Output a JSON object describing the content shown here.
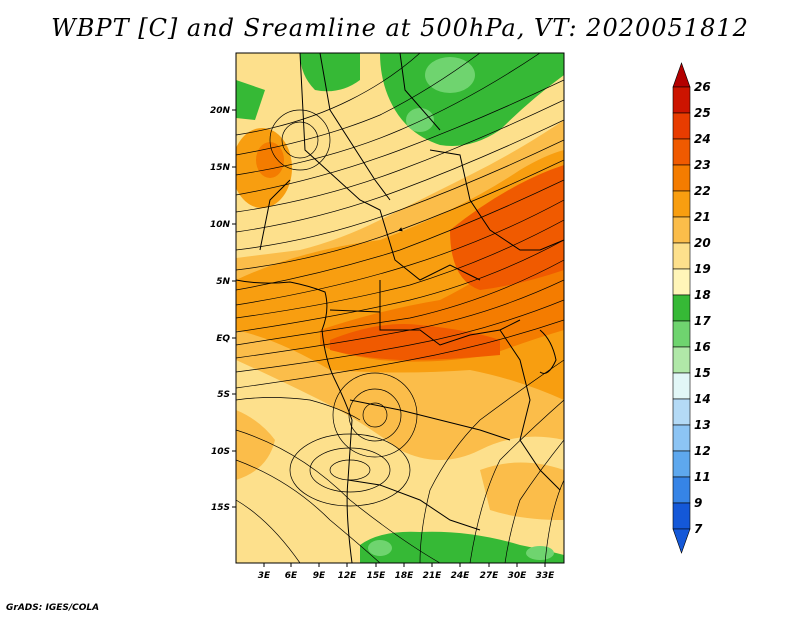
{
  "title": "WBPT [C] and Sreamline at 500hPa, VT: 2020051812",
  "credit": "GrADS: IGES/COLA",
  "map": {
    "lat_labels": [
      "20N",
      "15N",
      "10N",
      "5N",
      "EQ",
      "5S",
      "10S",
      "15S"
    ],
    "lon_labels": [
      "3E",
      "6E",
      "9E",
      "12E",
      "15E",
      "18E",
      "21E",
      "24E",
      "27E",
      "30E",
      "33E"
    ]
  },
  "legend": {
    "levels": [
      {
        "label": "26",
        "color": "#b30000"
      },
      {
        "label": "25",
        "color": "#cc1400"
      },
      {
        "label": "24",
        "color": "#e83c00"
      },
      {
        "label": "23",
        "color": "#f05a00"
      },
      {
        "label": "22",
        "color": "#f47c00"
      },
      {
        "label": "21",
        "color": "#f89e10"
      },
      {
        "label": "20",
        "color": "#fbbd4a"
      },
      {
        "label": "19",
        "color": "#fde08c"
      },
      {
        "label": "18",
        "color": "#fff5b8"
      },
      {
        "label": "17",
        "color": "#36b936"
      },
      {
        "label": "16",
        "color": "#6fd46f"
      },
      {
        "label": "15",
        "color": "#b0e8a8"
      },
      {
        "label": "14",
        "color": "#e2f7f7"
      },
      {
        "label": "13",
        "color": "#b4daf6"
      },
      {
        "label": "12",
        "color": "#8cc4f4"
      },
      {
        "label": "11",
        "color": "#5ea8ee"
      },
      {
        "label": "9",
        "color": "#3684e6"
      },
      {
        "label": "7",
        "color": "#1458d8"
      }
    ]
  }
}
